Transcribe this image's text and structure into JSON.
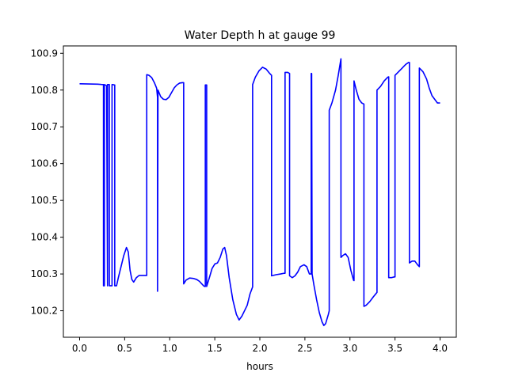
{
  "chart_data": {
    "type": "line",
    "title": "Water Depth h at gauge 99",
    "xlabel": "hours",
    "ylabel": "",
    "xlim": [
      -0.18,
      4.18
    ],
    "ylim": [
      100.128,
      100.92
    ],
    "xticks": [
      {
        "value": 0.0,
        "label": "0.0"
      },
      {
        "value": 0.5,
        "label": "0.5"
      },
      {
        "value": 1.0,
        "label": "1.0"
      },
      {
        "value": 1.5,
        "label": "1.5"
      },
      {
        "value": 2.0,
        "label": "2.0"
      },
      {
        "value": 2.5,
        "label": "2.5"
      },
      {
        "value": 3.0,
        "label": "3.0"
      },
      {
        "value": 3.5,
        "label": "3.5"
      },
      {
        "value": 4.0,
        "label": "4.0"
      }
    ],
    "yticks": [
      {
        "value": 100.2,
        "label": "100.2"
      },
      {
        "value": 100.3,
        "label": "100.3"
      },
      {
        "value": 100.4,
        "label": "100.4"
      },
      {
        "value": 100.5,
        "label": "100.5"
      },
      {
        "value": 100.6,
        "label": "100.6"
      },
      {
        "value": 100.7,
        "label": "100.7"
      },
      {
        "value": 100.8,
        "label": "100.8"
      },
      {
        "value": 100.9,
        "label": "100.9"
      }
    ],
    "grid": false,
    "legend": "none",
    "series": [
      {
        "color": "#0000ff",
        "x": [
          0.0,
          0.2,
          0.25,
          0.265,
          0.265,
          0.275,
          0.275,
          0.3,
          0.31,
          0.31,
          0.33,
          0.33,
          0.35,
          0.36,
          0.36,
          0.37,
          0.38,
          0.39,
          0.39,
          0.41,
          0.43,
          0.46,
          0.49,
          0.52,
          0.54,
          0.56,
          0.58,
          0.6,
          0.63,
          0.66,
          0.7,
          0.745,
          0.745,
          0.77,
          0.8,
          0.83,
          0.855,
          0.865,
          0.865,
          0.87,
          0.9,
          0.93,
          0.96,
          0.99,
          1.02,
          1.05,
          1.08,
          1.11,
          1.14,
          1.155,
          1.155,
          1.18,
          1.22,
          1.26,
          1.3,
          1.33,
          1.36,
          1.38,
          1.39,
          1.395,
          1.395,
          1.41,
          1.41,
          1.44,
          1.47,
          1.5,
          1.53,
          1.56,
          1.59,
          1.61,
          1.63,
          1.66,
          1.7,
          1.74,
          1.77,
          1.8,
          1.83,
          1.86,
          1.89,
          1.92,
          1.92,
          1.95,
          1.99,
          2.03,
          2.07,
          2.11,
          2.13,
          2.13,
          2.18,
          2.23,
          2.27,
          2.28,
          2.28,
          2.31,
          2.33,
          2.33,
          2.36,
          2.39,
          2.42,
          2.45,
          2.49,
          2.52,
          2.55,
          2.57,
          2.57,
          2.575,
          2.58,
          2.6,
          2.63,
          2.66,
          2.69,
          2.71,
          2.73,
          2.76,
          2.77,
          2.77,
          2.8,
          2.84,
          2.87,
          2.9,
          2.9,
          2.92,
          2.95,
          2.98,
          3.01,
          3.04,
          3.045,
          3.045,
          3.07,
          3.1,
          3.13,
          3.155,
          3.155,
          3.18,
          3.22,
          3.26,
          3.3,
          3.3,
          3.34,
          3.38,
          3.42,
          3.43,
          3.43,
          3.46,
          3.49,
          3.5,
          3.5,
          3.54,
          3.58,
          3.62,
          3.65,
          3.66,
          3.66,
          3.69,
          3.72,
          3.75,
          3.77,
          3.77,
          3.81,
          3.85,
          3.88,
          3.91,
          3.94,
          3.97,
          4.0
        ],
        "y": [
          100.817,
          100.816,
          100.815,
          100.815,
          100.268,
          100.268,
          100.815,
          100.812,
          100.268,
          100.815,
          100.815,
          100.268,
          100.268,
          100.268,
          100.815,
          100.815,
          100.814,
          100.814,
          100.268,
          100.268,
          100.29,
          100.32,
          100.35,
          100.372,
          100.36,
          100.31,
          100.285,
          100.278,
          100.29,
          100.296,
          100.296,
          100.296,
          100.842,
          100.84,
          100.834,
          100.82,
          100.805,
          100.78,
          100.253,
          100.8,
          100.782,
          100.775,
          100.774,
          100.78,
          100.793,
          100.806,
          100.814,
          100.819,
          100.82,
          100.82,
          100.273,
          100.283,
          100.289,
          100.288,
          100.285,
          100.28,
          100.272,
          100.267,
          100.266,
          100.266,
          100.814,
          100.814,
          100.266,
          100.29,
          100.315,
          100.327,
          100.33,
          100.345,
          100.368,
          100.372,
          100.35,
          100.29,
          100.23,
          100.19,
          100.175,
          100.185,
          100.2,
          100.215,
          100.245,
          100.265,
          100.815,
          100.835,
          100.852,
          100.862,
          100.857,
          100.845,
          100.84,
          100.295,
          100.298,
          100.3,
          100.302,
          100.302,
          100.848,
          100.848,
          100.845,
          100.295,
          100.29,
          100.295,
          100.305,
          100.32,
          100.325,
          100.32,
          100.3,
          100.3,
          100.845,
          100.845,
          100.3,
          100.27,
          100.23,
          100.195,
          100.17,
          100.16,
          100.165,
          100.19,
          100.2,
          100.745,
          100.765,
          100.8,
          100.84,
          100.885,
          100.345,
          100.35,
          100.355,
          100.345,
          100.31,
          100.283,
          100.282,
          100.825,
          100.8,
          100.775,
          100.765,
          100.762,
          100.212,
          100.215,
          100.225,
          100.238,
          100.25,
          100.8,
          100.81,
          100.825,
          100.835,
          100.836,
          100.29,
          100.29,
          100.292,
          100.292,
          100.84,
          100.85,
          100.86,
          100.87,
          100.875,
          100.875,
          100.33,
          100.335,
          100.335,
          100.325,
          100.32,
          100.86,
          100.85,
          100.83,
          100.805,
          100.785,
          100.775,
          100.765,
          100.765
        ]
      }
    ]
  }
}
